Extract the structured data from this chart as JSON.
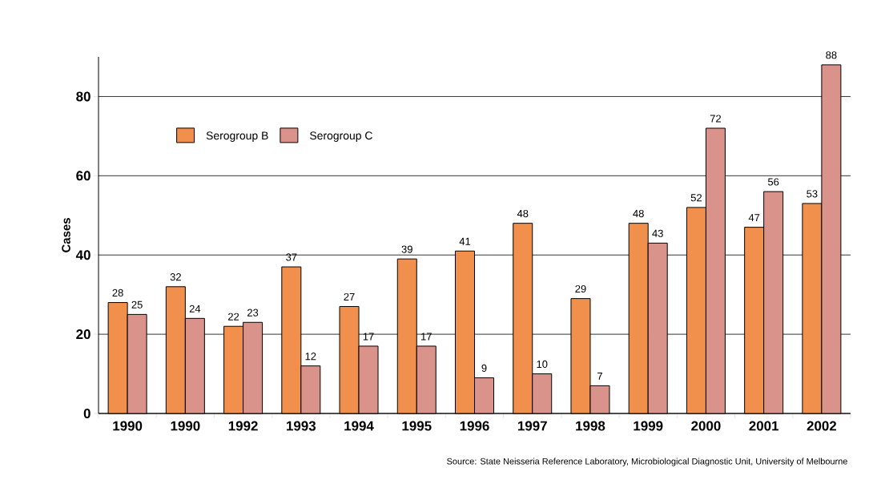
{
  "chart_data": {
    "type": "bar",
    "ylabel": "Cases",
    "categories": [
      "1990",
      "1990",
      "1992",
      "1993",
      "1994",
      "1995",
      "1996",
      "1997",
      "1998",
      "1999",
      "2000",
      "2001",
      "2002"
    ],
    "series": [
      {
        "name": "Serogroup B",
        "color": "#f0904c",
        "values": [
          28,
          32,
          22,
          37,
          27,
          39,
          41,
          48,
          29,
          48,
          52,
          47,
          53
        ]
      },
      {
        "name": "Serogroup C",
        "color": "#d9938a",
        "values": [
          25,
          24,
          23,
          12,
          17,
          17,
          9,
          10,
          7,
          43,
          72,
          56,
          88
        ]
      }
    ],
    "ylim": [
      0,
      90
    ],
    "yticks": [
      0,
      20,
      40,
      60,
      80
    ],
    "grid": "y",
    "legend": "top left",
    "data_labels": true,
    "annotations": [
      "Source: State Neisseria Reference Laboratory, Microbiological Diagnostic Unit, University of Melbourne"
    ]
  }
}
